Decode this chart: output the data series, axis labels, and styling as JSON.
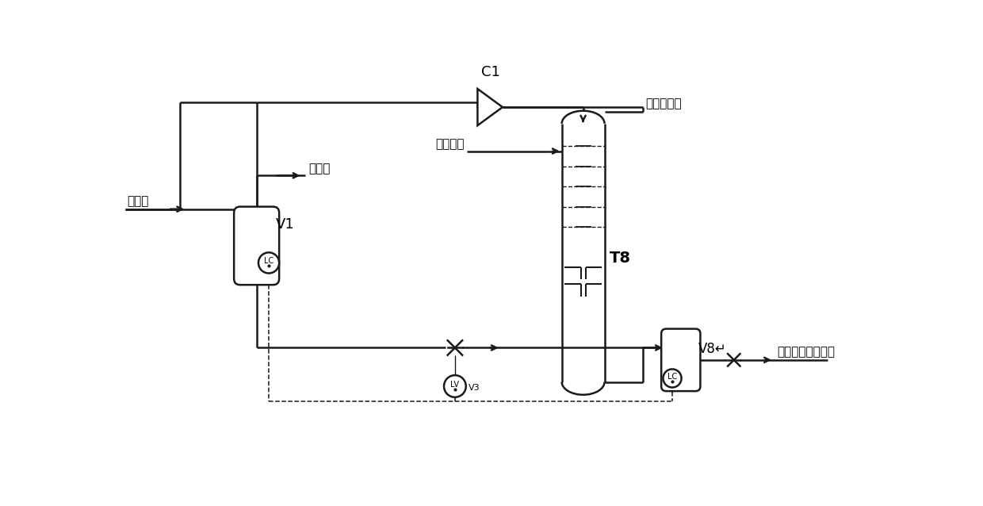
{
  "bg_color": "#ffffff",
  "lc": "#1a1a1a",
  "lw_main": 1.8,
  "lw_thin": 1.1,
  "figsize": [
    12.4,
    6.38
  ],
  "dpi": 100,
  "labels": {
    "C1": "C1",
    "T8": "T8",
    "V1": "V1",
    "V8": "V8↵",
    "yl_left": "原料气",
    "yl_mid": "原料气",
    "wuliu": "无硫甲醇",
    "xunhuan": "循环闪蒸气",
    "song": "送精馏塔回收甲醇",
    "LC": "LC",
    "LV": "LV",
    "V3": "V3"
  }
}
